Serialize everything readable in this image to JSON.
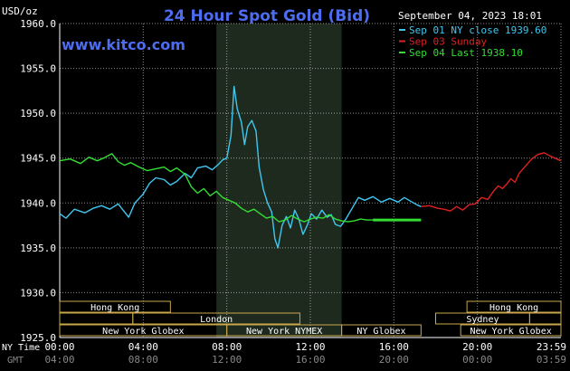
{
  "chart_data": {
    "type": "line",
    "title": "24 Hour Spot Gold (Bid)",
    "ylabel": "USD/oz",
    "brand": "www.kitco.com",
    "timestamp": "September 04, 2023 18:01",
    "ylim": [
      1925,
      1960
    ],
    "y_ticks": [
      1960,
      1955,
      1950,
      1945,
      1940,
      1935,
      1930,
      1925
    ],
    "y_tick_labels": [
      "1960.0",
      "1955.0",
      "1950.0",
      "1945.0",
      "1940.0",
      "1935.0",
      "1930.0",
      "1925.0"
    ],
    "xlim": [
      0,
      24
    ],
    "x_label_rows": {
      "ny_label": "NY Time",
      "gmt_label": "GMT",
      "ny": [
        "00:00",
        "04:00",
        "08:00",
        "12:00",
        "16:00",
        "20:00",
        "23:59"
      ],
      "gmt": [
        "04:00",
        "08:00",
        "12:00",
        "16:00",
        "20:00",
        "00:00",
        "03:59"
      ]
    },
    "x_tick_hours": [
      0,
      4,
      8,
      12,
      16,
      20,
      24
    ],
    "shaded_range": [
      7.5,
      13.5
    ],
    "colors": {
      "background": "#000000",
      "grid": "#ffffff",
      "shade": "#1f2a1f",
      "title": "#4d6cf0",
      "brand": "#4d6cf0",
      "axis_text": "#ffffff",
      "session_box": "#c9a74a",
      "session_text": "#ffffff"
    },
    "legend": [
      {
        "text": "Sep 01 NY close 1939.60",
        "color": "#3ec8f0"
      },
      {
        "text": "Sep 03 Sunday",
        "color": "#e02020"
      },
      {
        "text": "Sep 04 Last 1938.10",
        "color": "#33dd33"
      }
    ],
    "series": [
      {
        "name": "Sep 01 NY close 1939.60",
        "color": "#3ec8f0",
        "points": [
          [
            0,
            1938.8
          ],
          [
            0.3,
            1938.3
          ],
          [
            0.7,
            1939.3
          ],
          [
            1.2,
            1938.9
          ],
          [
            1.6,
            1939.4
          ],
          [
            2.0,
            1939.7
          ],
          [
            2.4,
            1939.3
          ],
          [
            2.8,
            1939.9
          ],
          [
            3.1,
            1939.0
          ],
          [
            3.3,
            1938.4
          ],
          [
            3.6,
            1940.0
          ],
          [
            4.0,
            1941.0
          ],
          [
            4.3,
            1942.2
          ],
          [
            4.6,
            1942.8
          ],
          [
            5.0,
            1942.6
          ],
          [
            5.3,
            1942.0
          ],
          [
            5.6,
            1942.4
          ],
          [
            6.0,
            1943.3
          ],
          [
            6.3,
            1942.8
          ],
          [
            6.6,
            1943.9
          ],
          [
            7.0,
            1944.1
          ],
          [
            7.3,
            1943.7
          ],
          [
            7.6,
            1944.3
          ],
          [
            7.8,
            1944.8
          ],
          [
            8.0,
            1945.0
          ],
          [
            8.2,
            1947.5
          ],
          [
            8.35,
            1953.0
          ],
          [
            8.5,
            1950.5
          ],
          [
            8.7,
            1949.0
          ],
          [
            8.85,
            1946.5
          ],
          [
            9.0,
            1948.5
          ],
          [
            9.2,
            1949.2
          ],
          [
            9.4,
            1948.0
          ],
          [
            9.55,
            1944.0
          ],
          [
            9.75,
            1941.5
          ],
          [
            9.95,
            1940.0
          ],
          [
            10.15,
            1939.0
          ],
          [
            10.3,
            1936.0
          ],
          [
            10.45,
            1935.0
          ],
          [
            10.65,
            1937.5
          ],
          [
            10.85,
            1938.5
          ],
          [
            11.05,
            1937.2
          ],
          [
            11.25,
            1939.2
          ],
          [
            11.45,
            1938.2
          ],
          [
            11.65,
            1936.5
          ],
          [
            11.85,
            1937.5
          ],
          [
            12.05,
            1938.8
          ],
          [
            12.3,
            1938.2
          ],
          [
            12.55,
            1939.2
          ],
          [
            12.8,
            1938.4
          ],
          [
            13.0,
            1938.7
          ],
          [
            13.2,
            1937.6
          ],
          [
            13.45,
            1937.4
          ],
          [
            13.7,
            1938.2
          ],
          [
            14.0,
            1939.4
          ],
          [
            14.3,
            1940.6
          ],
          [
            14.6,
            1940.3
          ],
          [
            15.0,
            1940.7
          ],
          [
            15.4,
            1940.1
          ],
          [
            15.8,
            1940.5
          ],
          [
            16.2,
            1940.1
          ],
          [
            16.5,
            1940.6
          ],
          [
            16.8,
            1940.2
          ],
          [
            17.1,
            1939.8
          ],
          [
            17.3,
            1939.6
          ]
        ]
      },
      {
        "name": "Sep 03 Sunday",
        "color": "#e02020",
        "points": [
          [
            17.3,
            1939.6
          ],
          [
            17.7,
            1939.7
          ],
          [
            18.1,
            1939.4
          ],
          [
            18.4,
            1939.3
          ],
          [
            18.7,
            1939.1
          ],
          [
            19.0,
            1939.6
          ],
          [
            19.3,
            1939.2
          ],
          [
            19.6,
            1939.8
          ],
          [
            19.9,
            1939.9
          ],
          [
            20.2,
            1940.6
          ],
          [
            20.5,
            1940.4
          ],
          [
            20.8,
            1941.4
          ],
          [
            21.0,
            1941.9
          ],
          [
            21.2,
            1941.6
          ],
          [
            21.4,
            1942.1
          ],
          [
            21.6,
            1942.7
          ],
          [
            21.8,
            1942.3
          ],
          [
            22.0,
            1943.3
          ],
          [
            22.3,
            1944.1
          ],
          [
            22.6,
            1944.9
          ],
          [
            22.9,
            1945.4
          ],
          [
            23.2,
            1945.6
          ],
          [
            23.5,
            1945.2
          ],
          [
            23.8,
            1944.9
          ],
          [
            24.0,
            1944.7
          ]
        ]
      },
      {
        "name": "Sep 04 Last 1938.10",
        "color": "#33dd33",
        "points": [
          [
            0,
            1944.7
          ],
          [
            0.5,
            1944.9
          ],
          [
            1.0,
            1944.4
          ],
          [
            1.4,
            1945.1
          ],
          [
            1.8,
            1944.7
          ],
          [
            2.1,
            1945.0
          ],
          [
            2.5,
            1945.5
          ],
          [
            2.8,
            1944.6
          ],
          [
            3.1,
            1944.2
          ],
          [
            3.4,
            1944.5
          ],
          [
            3.8,
            1944.0
          ],
          [
            4.2,
            1943.6
          ],
          [
            4.6,
            1943.8
          ],
          [
            5.0,
            1944.0
          ],
          [
            5.3,
            1943.5
          ],
          [
            5.6,
            1943.9
          ],
          [
            6.0,
            1943.2
          ],
          [
            6.3,
            1941.8
          ],
          [
            6.6,
            1941.1
          ],
          [
            6.9,
            1941.6
          ],
          [
            7.2,
            1940.8
          ],
          [
            7.5,
            1941.3
          ],
          [
            7.8,
            1940.6
          ],
          [
            8.1,
            1940.3
          ],
          [
            8.4,
            1940.0
          ],
          [
            8.7,
            1939.4
          ],
          [
            9.0,
            1939.0
          ],
          [
            9.3,
            1939.3
          ],
          [
            9.6,
            1938.8
          ],
          [
            9.9,
            1938.3
          ],
          [
            10.2,
            1938.5
          ],
          [
            10.5,
            1937.9
          ],
          [
            10.8,
            1938.1
          ],
          [
            11.1,
            1938.6
          ],
          [
            11.4,
            1938.2
          ],
          [
            11.7,
            1937.9
          ],
          [
            12.0,
            1938.2
          ],
          [
            12.3,
            1938.4
          ],
          [
            12.6,
            1938.3
          ],
          [
            12.9,
            1938.7
          ],
          [
            13.2,
            1938.2
          ],
          [
            13.5,
            1938.0
          ],
          [
            13.8,
            1937.9
          ],
          [
            14.1,
            1938.0
          ],
          [
            14.4,
            1938.2
          ],
          [
            14.7,
            1938.1
          ],
          [
            15.0,
            1938.1
          ],
          [
            17.3,
            1938.1
          ]
        ]
      }
    ],
    "session_bars": [
      {
        "row": 0,
        "start": 0.0,
        "end": 5.3,
        "label": "Hong Kong"
      },
      {
        "row": 0,
        "start": 19.5,
        "end": 24.0,
        "label": "Hong Kong"
      },
      {
        "row": 1,
        "start": 0.0,
        "end": 3.5,
        "label": ""
      },
      {
        "row": 1,
        "start": 3.5,
        "end": 11.5,
        "label": "London"
      },
      {
        "row": 1,
        "start": 18.0,
        "end": 22.5,
        "label": "Sydney"
      },
      {
        "row": 1,
        "start": 22.5,
        "end": 24.0,
        "label": ""
      },
      {
        "row": 2,
        "start": 0.0,
        "end": 8.0,
        "label": "New York Globex"
      },
      {
        "row": 2,
        "start": 8.0,
        "end": 13.5,
        "label": "New York NYMEX"
      },
      {
        "row": 2,
        "start": 13.5,
        "end": 17.3,
        "label": "NY Globex"
      },
      {
        "row": 2,
        "start": 19.2,
        "end": 24.0,
        "label": "New York Globex"
      }
    ]
  }
}
